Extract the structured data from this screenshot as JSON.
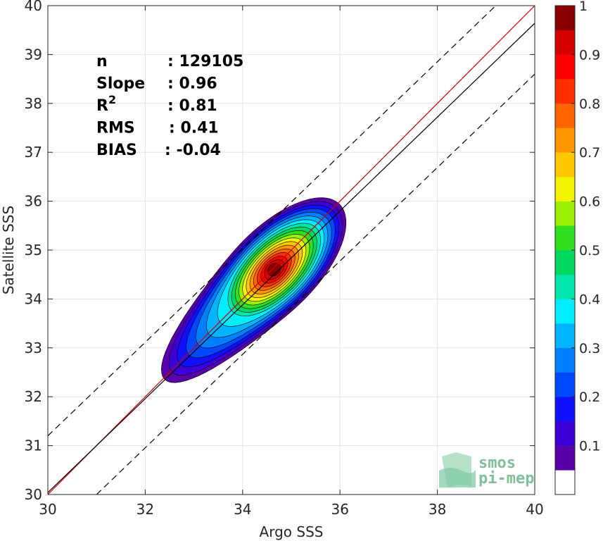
{
  "chart_data": {
    "type": "heatmap",
    "subtype": "2d-density-contour",
    "title": "",
    "xlabel": "Argo SSS",
    "ylabel": "Satellite SSS",
    "xlim": [
      30,
      40
    ],
    "ylim": [
      30,
      40
    ],
    "xticks": [
      "30",
      "32",
      "34",
      "36",
      "38",
      "40"
    ],
    "yticks": [
      "30",
      "31",
      "32",
      "33",
      "34",
      "35",
      "36",
      "37",
      "38",
      "39",
      "40"
    ],
    "grid": true,
    "stats": [
      {
        "key": "n",
        "value": ": 129105"
      },
      {
        "key": "Slope",
        "value": ": 0.96"
      },
      {
        "key": "R",
        "sup": "2",
        "value": ": 0.81"
      },
      {
        "key": "RMS",
        "value": ": 0.41"
      },
      {
        "key": "BIAS",
        "value": ": -0.04"
      }
    ],
    "lines": [
      {
        "kind": "identity",
        "color": "#d00000",
        "x": [
          30,
          40
        ],
        "y": [
          30,
          40
        ]
      },
      {
        "kind": "regression",
        "color": "#000000",
        "slope": 0.96,
        "intercept": 1.24
      },
      {
        "kind": "plus-1",
        "color": "#000000",
        "dash": true,
        "x": [
          30,
          39.2
        ],
        "y": [
          31.2,
          40
        ]
      },
      {
        "kind": "minus-1",
        "color": "#000000",
        "dash": true,
        "x": [
          31,
          40
        ],
        "y": [
          30,
          38.6
        ]
      }
    ],
    "density": {
      "center": [
        34.65,
        34.6
      ],
      "major_axis_angle_deg": 45,
      "tail": [
        32.5,
        32.4
      ],
      "peak": 1.0
    },
    "colorbar": {
      "ticks": [
        "0.1",
        "0.2",
        "0.3",
        "0.4",
        "0.5",
        "0.6",
        "0.7",
        "0.8",
        "0.9",
        "1"
      ],
      "levels": [
        {
          "value": 0.05,
          "color": "#ffffff"
        },
        {
          "value": 0.1,
          "color": "#5a00a8"
        },
        {
          "value": 0.15,
          "color": "#3c00d8"
        },
        {
          "value": 0.2,
          "color": "#1010ff"
        },
        {
          "value": 0.25,
          "color": "#0048ff"
        },
        {
          "value": 0.3,
          "color": "#0080ff"
        },
        {
          "value": 0.35,
          "color": "#00b4ff"
        },
        {
          "value": 0.4,
          "color": "#00ecff"
        },
        {
          "value": 0.45,
          "color": "#00e6aa"
        },
        {
          "value": 0.5,
          "color": "#00d860"
        },
        {
          "value": 0.55,
          "color": "#30e020"
        },
        {
          "value": 0.6,
          "color": "#9aee00"
        },
        {
          "value": 0.65,
          "color": "#f4f400"
        },
        {
          "value": 0.7,
          "color": "#ffc800"
        },
        {
          "value": 0.75,
          "color": "#ff9600"
        },
        {
          "value": 0.8,
          "color": "#ff6400"
        },
        {
          "value": 0.85,
          "color": "#ff3000"
        },
        {
          "value": 0.9,
          "color": "#ff0000"
        },
        {
          "value": 0.95,
          "color": "#d40000"
        },
        {
          "value": 1.0,
          "color": "#880000"
        }
      ]
    }
  },
  "logo": {
    "line1": "smos",
    "line2": "pi-mep"
  }
}
